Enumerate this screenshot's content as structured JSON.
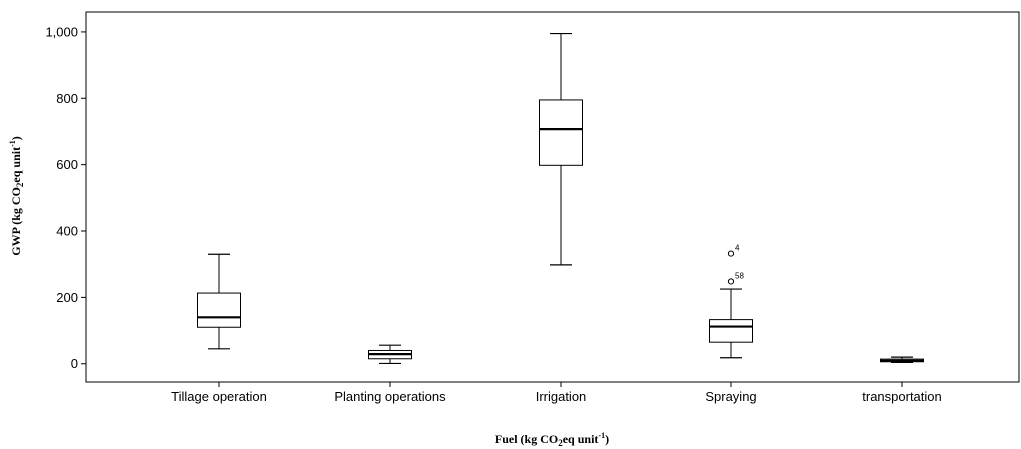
{
  "chart_data": {
    "type": "boxplot",
    "xlabel_parts": {
      "main": "Fuel (kg CO",
      "sub": "2",
      "mid": "eq unit",
      "sup": "-1",
      "end": ")"
    },
    "ylabel_parts": {
      "main": "GWP (kg CO",
      "sub": "2",
      "mid": "eq unit",
      "sup": "-1",
      "end": ")"
    },
    "ylim": [
      -55,
      1060
    ],
    "yticks": [
      {
        "value": 0,
        "label": "0"
      },
      {
        "value": 200,
        "label": "200"
      },
      {
        "value": 400,
        "label": "400"
      },
      {
        "value": 600,
        "label": "600"
      },
      {
        "value": 800,
        "label": "800"
      },
      {
        "value": 1000,
        "label": "1,000"
      }
    ],
    "categories": [
      "Tillage operation",
      "Planting operations",
      "Irrigation",
      "Spraying",
      "transportation"
    ],
    "boxes": [
      {
        "category": "Tillage operation",
        "min": 45,
        "q1": 110,
        "median": 140,
        "q3": 213,
        "max": 330,
        "outliers": []
      },
      {
        "category": "Planting operations",
        "min": 1,
        "q1": 15,
        "median": 29,
        "q3": 40,
        "max": 56,
        "outliers": []
      },
      {
        "category": "Irrigation",
        "min": 298,
        "q1": 598,
        "median": 707,
        "q3": 795,
        "max": 995,
        "outliers": []
      },
      {
        "category": "Spraying",
        "min": 18,
        "q1": 65,
        "median": 112,
        "q3": 133,
        "max": 225,
        "outliers": [
          {
            "value": 332,
            "label": "4"
          },
          {
            "value": 248,
            "label": "58"
          }
        ]
      },
      {
        "category": "transportation",
        "min": 4,
        "q1": 6,
        "median": 9,
        "q3": 14,
        "max": 20,
        "outliers": []
      }
    ],
    "grid": false,
    "legend": "none"
  }
}
